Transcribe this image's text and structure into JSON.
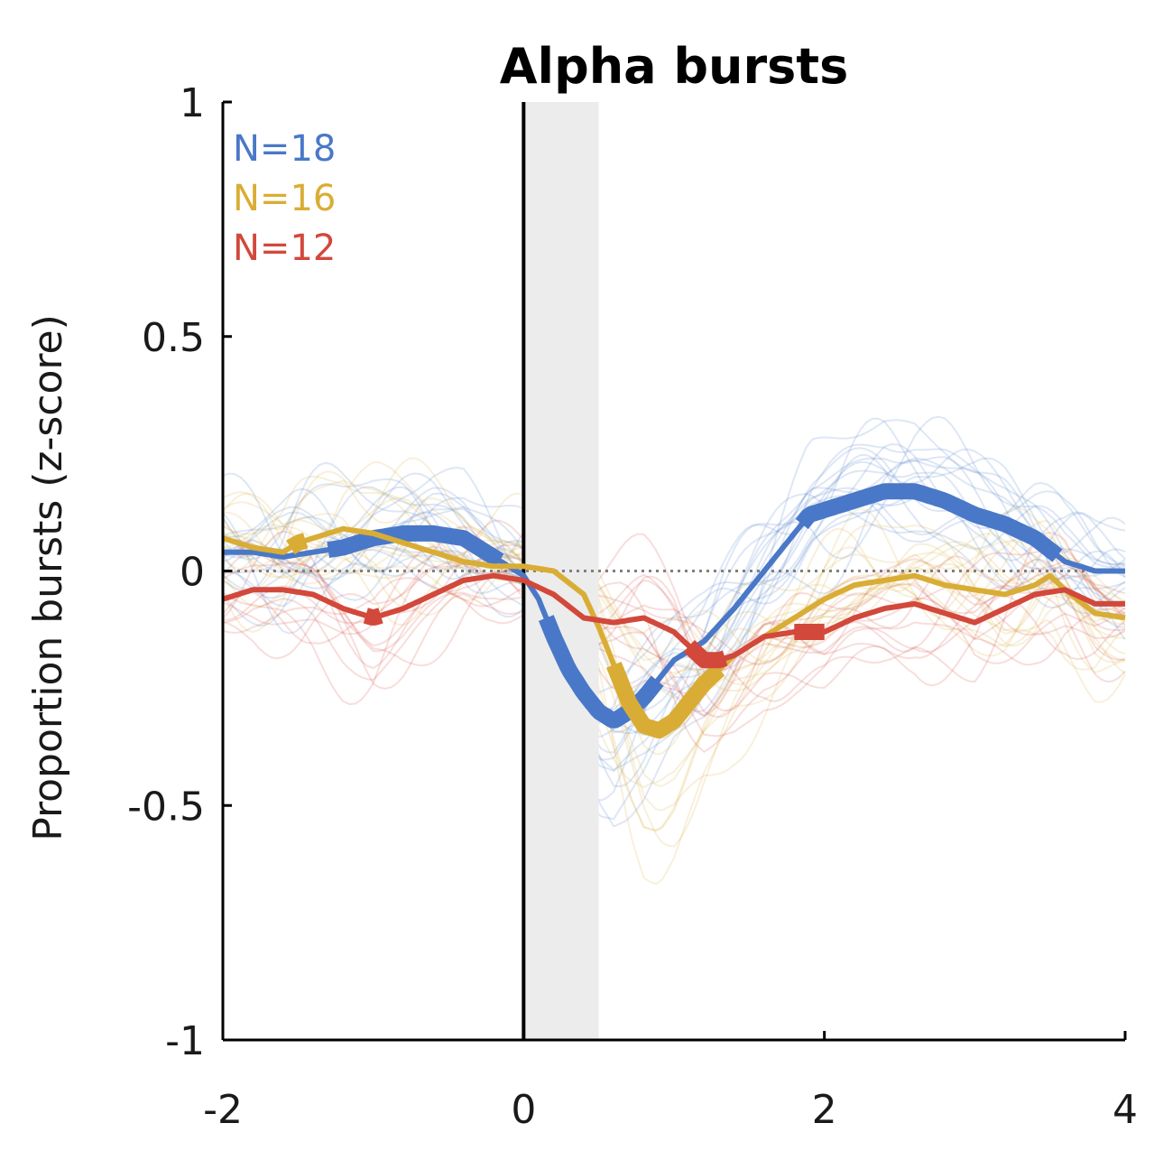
{
  "chart_data": {
    "type": "line",
    "title": "Alpha bursts",
    "xlabel": "",
    "ylabel": "Proportion bursts (z-score)",
    "xlim": [
      -2,
      4
    ],
    "ylim": [
      -1,
      1
    ],
    "xticks": [
      "-2",
      "0",
      "2",
      "4"
    ],
    "yticks": [
      "1",
      "0.5",
      "0",
      "-0.5",
      "-1"
    ],
    "xtick_values": [
      -2,
      0,
      2,
      4
    ],
    "ytick_values": [
      1,
      0.5,
      0,
      -0.5,
      -1
    ],
    "shaded_interval": [
      0,
      0.5
    ],
    "vertical_line_x": 0,
    "reference_line_y": 0,
    "grid": false,
    "legend_position": "top-left",
    "legend": [
      {
        "label": "N=18",
        "color": "#4a78c8"
      },
      {
        "label": "N=16",
        "color": "#d9ad35"
      },
      {
        "label": "N=12",
        "color": "#d2483b"
      }
    ],
    "series": [
      {
        "color": "#4a78c8",
        "x": [
          -2,
          -1.8,
          -1.6,
          -1.4,
          -1.2,
          -1.0,
          -0.8,
          -0.6,
          -0.4,
          -0.2,
          0.0,
          0.1,
          0.2,
          0.3,
          0.4,
          0.5,
          0.6,
          0.7,
          0.8,
          0.9,
          1.0,
          1.2,
          1.4,
          1.6,
          1.8,
          1.9,
          2.0,
          2.2,
          2.4,
          2.6,
          2.8,
          3.0,
          3.2,
          3.4,
          3.6,
          3.8,
          4.0
        ],
        "values": [
          0.04,
          0.04,
          0.03,
          0.04,
          0.05,
          0.07,
          0.08,
          0.08,
          0.07,
          0.03,
          -0.01,
          -0.06,
          -0.14,
          -0.21,
          -0.26,
          -0.3,
          -0.32,
          -0.3,
          -0.27,
          -0.23,
          -0.19,
          -0.15,
          -0.08,
          0.0,
          0.08,
          0.12,
          0.13,
          0.15,
          0.17,
          0.17,
          0.15,
          0.12,
          0.1,
          0.07,
          0.02,
          0.0,
          0.0
        ],
        "significant_intervals": [
          [
            -1.3,
            -0.15
          ],
          [
            0.15,
            0.9
          ],
          [
            1.85,
            3.55
          ]
        ]
      },
      {
        "color": "#d9ad35",
        "x": [
          -2,
          -1.8,
          -1.6,
          -1.5,
          -1.4,
          -1.2,
          -1.0,
          -0.8,
          -0.6,
          -0.4,
          -0.2,
          0.0,
          0.2,
          0.4,
          0.5,
          0.6,
          0.7,
          0.8,
          0.9,
          1.0,
          1.2,
          1.4,
          1.6,
          1.8,
          2.0,
          2.2,
          2.4,
          2.6,
          2.8,
          3.0,
          3.2,
          3.4,
          3.5,
          3.6,
          3.8,
          4.0
        ],
        "values": [
          0.07,
          0.05,
          0.04,
          0.06,
          0.07,
          0.09,
          0.08,
          0.06,
          0.04,
          0.02,
          0.01,
          0.01,
          0.0,
          -0.05,
          -0.12,
          -0.2,
          -0.28,
          -0.33,
          -0.34,
          -0.32,
          -0.24,
          -0.18,
          -0.14,
          -0.1,
          -0.06,
          -0.03,
          -0.02,
          -0.01,
          -0.03,
          -0.04,
          -0.05,
          -0.03,
          -0.01,
          -0.04,
          -0.09,
          -0.1
        ],
        "significant_intervals": [
          [
            -1.55,
            -1.45
          ],
          [
            0.6,
            1.3
          ]
        ]
      },
      {
        "color": "#d2483b",
        "x": [
          -2,
          -1.8,
          -1.6,
          -1.4,
          -1.2,
          -1.0,
          -0.8,
          -0.6,
          -0.4,
          -0.2,
          0.0,
          0.2,
          0.4,
          0.6,
          0.8,
          1.0,
          1.1,
          1.2,
          1.3,
          1.4,
          1.6,
          1.8,
          2.0,
          2.2,
          2.4,
          2.6,
          2.8,
          3.0,
          3.2,
          3.4,
          3.6,
          3.8,
          4.0
        ],
        "values": [
          -0.06,
          -0.04,
          -0.04,
          -0.05,
          -0.08,
          -0.1,
          -0.08,
          -0.05,
          -0.02,
          -0.01,
          -0.02,
          -0.05,
          -0.1,
          -0.11,
          -0.1,
          -0.13,
          -0.16,
          -0.19,
          -0.19,
          -0.18,
          -0.14,
          -0.13,
          -0.13,
          -0.1,
          -0.08,
          -0.07,
          -0.09,
          -0.11,
          -0.08,
          -0.05,
          -0.04,
          -0.07,
          -0.07
        ],
        "significant_intervals": [
          [
            -1.05,
            -0.95
          ],
          [
            1.1,
            1.35
          ],
          [
            1.8,
            2.0
          ]
        ]
      }
    ]
  }
}
